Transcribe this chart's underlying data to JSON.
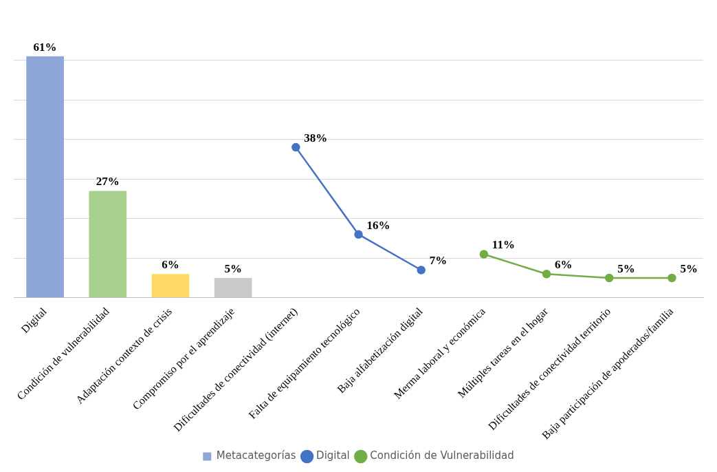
{
  "chart_data": {
    "type": "bar",
    "categories": [
      "Digital",
      "Condición de vulnerabilidad",
      "Adaptación contexto de crisis",
      "Compromiso por el aprendizaje",
      "Dificultades de conectividad (internet)",
      "Falta de equipamiento tecnológico",
      "Baja alfabetización digital",
      "Merma laboral y económica",
      "Múltiples tareas en el hogar",
      "Dificultades de conectividad territorio",
      "Baja participación de apoderados/familia"
    ],
    "series": [
      {
        "name": "Metacategorías",
        "color": "#8fa6d8",
        "colors": [
          "#8fa6d8",
          "#a9d18e",
          "#ffd966",
          "#c9c9c9",
          null,
          null,
          null,
          null,
          null,
          null,
          null
        ],
        "values": [
          61,
          27,
          6,
          5,
          null,
          null,
          null,
          null,
          null,
          null,
          null
        ],
        "value_labels": [
          "61%",
          "27%",
          "6%",
          "5%",
          null,
          null,
          null,
          null,
          null,
          null,
          null
        ]
      },
      {
        "name": "Digital",
        "type": "line",
        "color": "#4472c4",
        "values": [
          null,
          null,
          null,
          null,
          38,
          16,
          7,
          null,
          null,
          null,
          null
        ],
        "value_labels": [
          null,
          null,
          null,
          null,
          "38%",
          "16%",
          "7%",
          null,
          null,
          null,
          null
        ]
      },
      {
        "name": "Condición de Vulnerabilidad",
        "type": "line",
        "color": "#70ad47",
        "values": [
          null,
          null,
          null,
          null,
          null,
          null,
          null,
          11,
          6,
          5,
          5
        ],
        "value_labels": [
          null,
          null,
          null,
          null,
          null,
          null,
          null,
          "11%",
          "6%",
          "5%",
          "5%"
        ]
      }
    ],
    "yticks": [
      {
        "value": 0,
        "label": null
      },
      {
        "value": 10,
        "label": null
      },
      {
        "value": 20,
        "label": null
      },
      {
        "value": 30,
        "label": null
      },
      {
        "value": 40,
        "label": null
      },
      {
        "value": 50,
        "label": null
      },
      {
        "value": 60,
        "label": null
      }
    ],
    "grid": "y",
    "legend": "bottom",
    "marker": "circle",
    "tick_labels": "x"
  }
}
